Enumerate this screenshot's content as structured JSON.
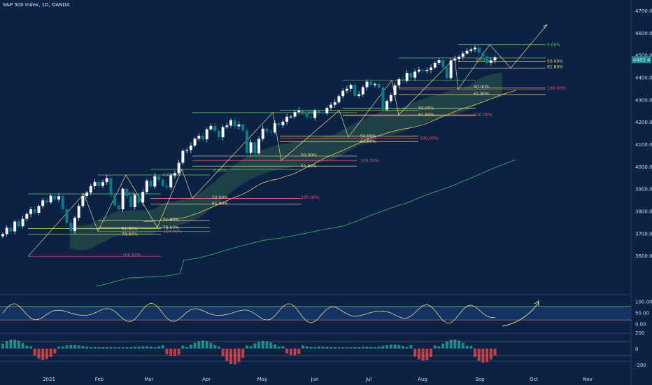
{
  "title": "S&P 500 Index, 1D, OANDA",
  "price_label": "4482.4",
  "colors": {
    "background": "#0c2244",
    "up": "#f2f4f8",
    "down": "#0b7c86",
    "fib_yellow": "#e8d98c",
    "fib_green": "#6bbf6b",
    "fib_red": "#e05a6a",
    "cloud": "#2d5a4a",
    "hist_up": "#1f8a8a",
    "hist_down": "#c0404a",
    "osc": "#e8d98c"
  },
  "chart_data": [
    {
      "type": "line",
      "title": "S&P 500 Index, 1D, OANDA",
      "ylim": [
        3500,
        4700
      ],
      "y_ticks": [
        "4700.00",
        "4600.00",
        "4500.00",
        "4400.00",
        "4300.00",
        "4200.00",
        "4100.00",
        "4000.00",
        "3900.00",
        "3800.00",
        "3700.00",
        "3600.00"
      ],
      "x_ticks": [
        "2021",
        "Feb",
        "Mar",
        "Apr",
        "May",
        "Jun",
        "Jul",
        "Aug",
        "Sep",
        "Oct",
        "Nov"
      ],
      "series": [
        {
          "values": [
            3700,
            3728,
            3712,
            3756,
            3735,
            3768,
            3790,
            3811,
            3795,
            3826,
            3851,
            3842,
            3872,
            3855,
            3870,
            3812,
            3750,
            3714,
            3773,
            3826,
            3871,
            3886,
            3915,
            3934,
            3916,
            3933,
            3951,
            3876,
            3828,
            3811,
            3903,
            3870,
            3821,
            3875,
            3841,
            3889,
            3939,
            3913,
            3960,
            3943,
            3915,
            3910,
            3963,
            3973,
            4020,
            4073,
            4077,
            4097,
            4128,
            4141,
            4125,
            4170,
            4185,
            4163,
            4134,
            4180,
            4187,
            4211,
            4183,
            4192,
            4165,
            4064,
            4112,
            4063,
            4127,
            4173,
            4159,
            4156,
            4197,
            4188,
            4204,
            4226,
            4227,
            4247,
            4255,
            4246,
            4224,
            4221,
            4255,
            4246,
            4242,
            4266,
            4280,
            4291,
            4319,
            4343,
            4352,
            4369,
            4320,
            4327,
            4359,
            4384,
            4369,
            4374,
            4358,
            4258,
            4297,
            4323,
            4367,
            4395,
            4387,
            4423,
            4402,
            4429,
            4437,
            4432,
            4436,
            4447,
            4468,
            4480,
            4448,
            4400,
            4479,
            4486,
            4496,
            4510,
            4522,
            4529,
            4537,
            4514,
            4497,
            4468,
            4479,
            4493
          ]
        }
      ],
      "fib_labels": [
        "0.00%",
        "50.00%",
        "61.80%",
        "78.60%",
        "100.00%"
      ]
    },
    {
      "type": "line",
      "y_ticks": [
        "100.00",
        "50.00",
        "0.00"
      ]
    },
    {
      "type": "bar",
      "y_ticks": [
        "200",
        "0",
        "-200"
      ]
    }
  ]
}
